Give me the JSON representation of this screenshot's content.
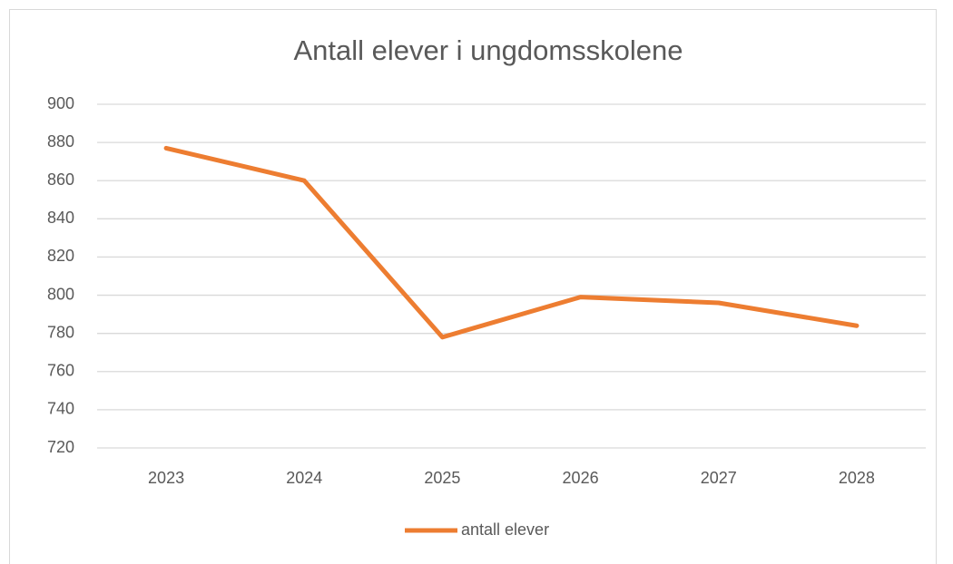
{
  "chart_data": {
    "type": "line",
    "title": "Antall elever i ungdomsskolene",
    "categories": [
      "2023",
      "2024",
      "2025",
      "2026",
      "2027",
      "2028"
    ],
    "series": [
      {
        "name": "antall elever",
        "color": "#ed7d31",
        "values": [
          877,
          860,
          778,
          799,
          796,
          784
        ]
      }
    ],
    "ylim": [
      720,
      900
    ],
    "yticks": [
      720,
      740,
      760,
      780,
      800,
      820,
      840,
      860,
      880,
      900
    ],
    "grid": true,
    "legend": "bottom"
  }
}
